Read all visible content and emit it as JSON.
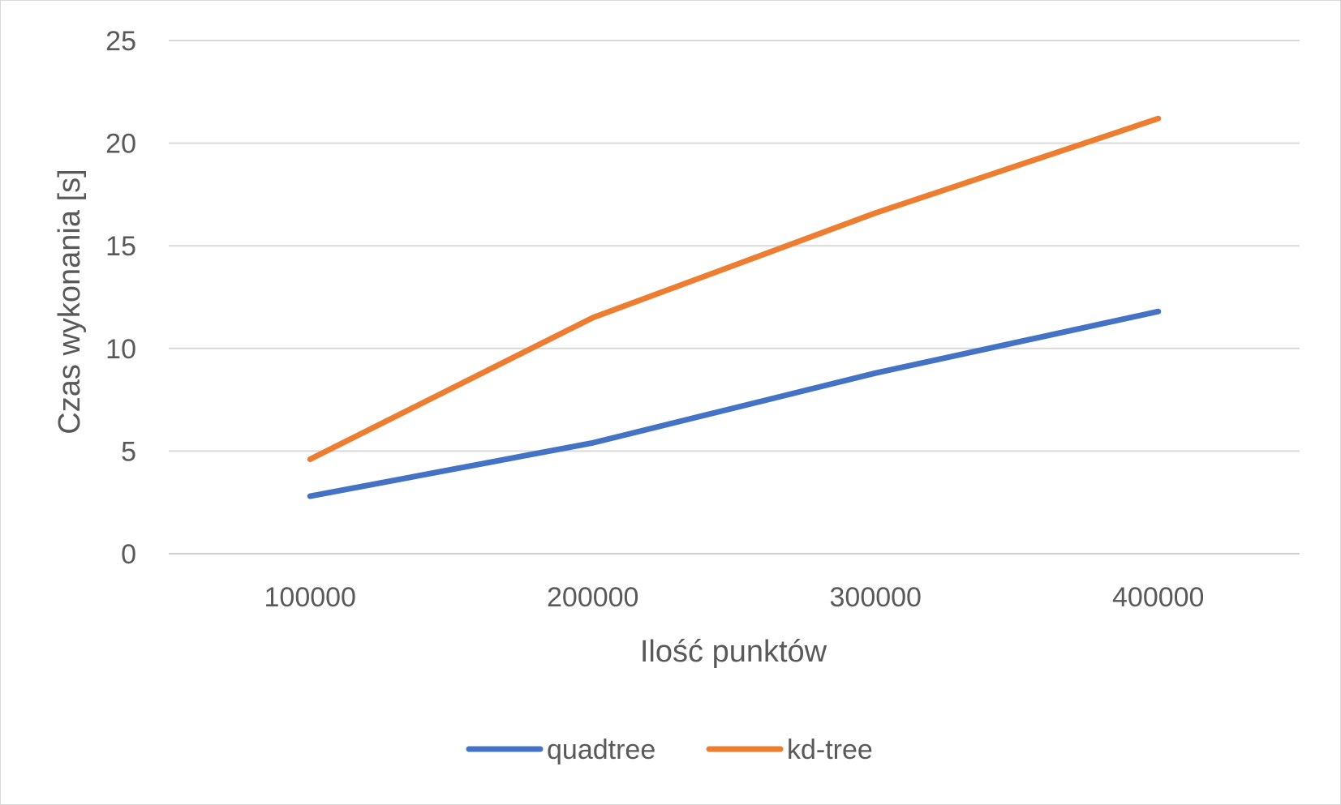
{
  "chart_data": {
    "type": "line",
    "title": "",
    "xlabel": "Ilość punktów",
    "ylabel": "Czas wykonania [s]",
    "categories": [
      "100000",
      "200000",
      "300000",
      "400000"
    ],
    "ylim": [
      0,
      25
    ],
    "yticks": [
      0,
      5,
      10,
      15,
      20,
      25
    ],
    "ytick_labels": [
      "0",
      "5",
      "10",
      "15",
      "20",
      "25"
    ],
    "grid": true,
    "legend_position": "bottom",
    "series": [
      {
        "name": "quadtree",
        "values": [
          2.8,
          5.4,
          8.8,
          11.8
        ],
        "color": "#4472c4"
      },
      {
        "name": "kd-tree",
        "values": [
          4.6,
          11.5,
          16.6,
          21.2
        ],
        "color": "#ed7d31"
      }
    ]
  }
}
